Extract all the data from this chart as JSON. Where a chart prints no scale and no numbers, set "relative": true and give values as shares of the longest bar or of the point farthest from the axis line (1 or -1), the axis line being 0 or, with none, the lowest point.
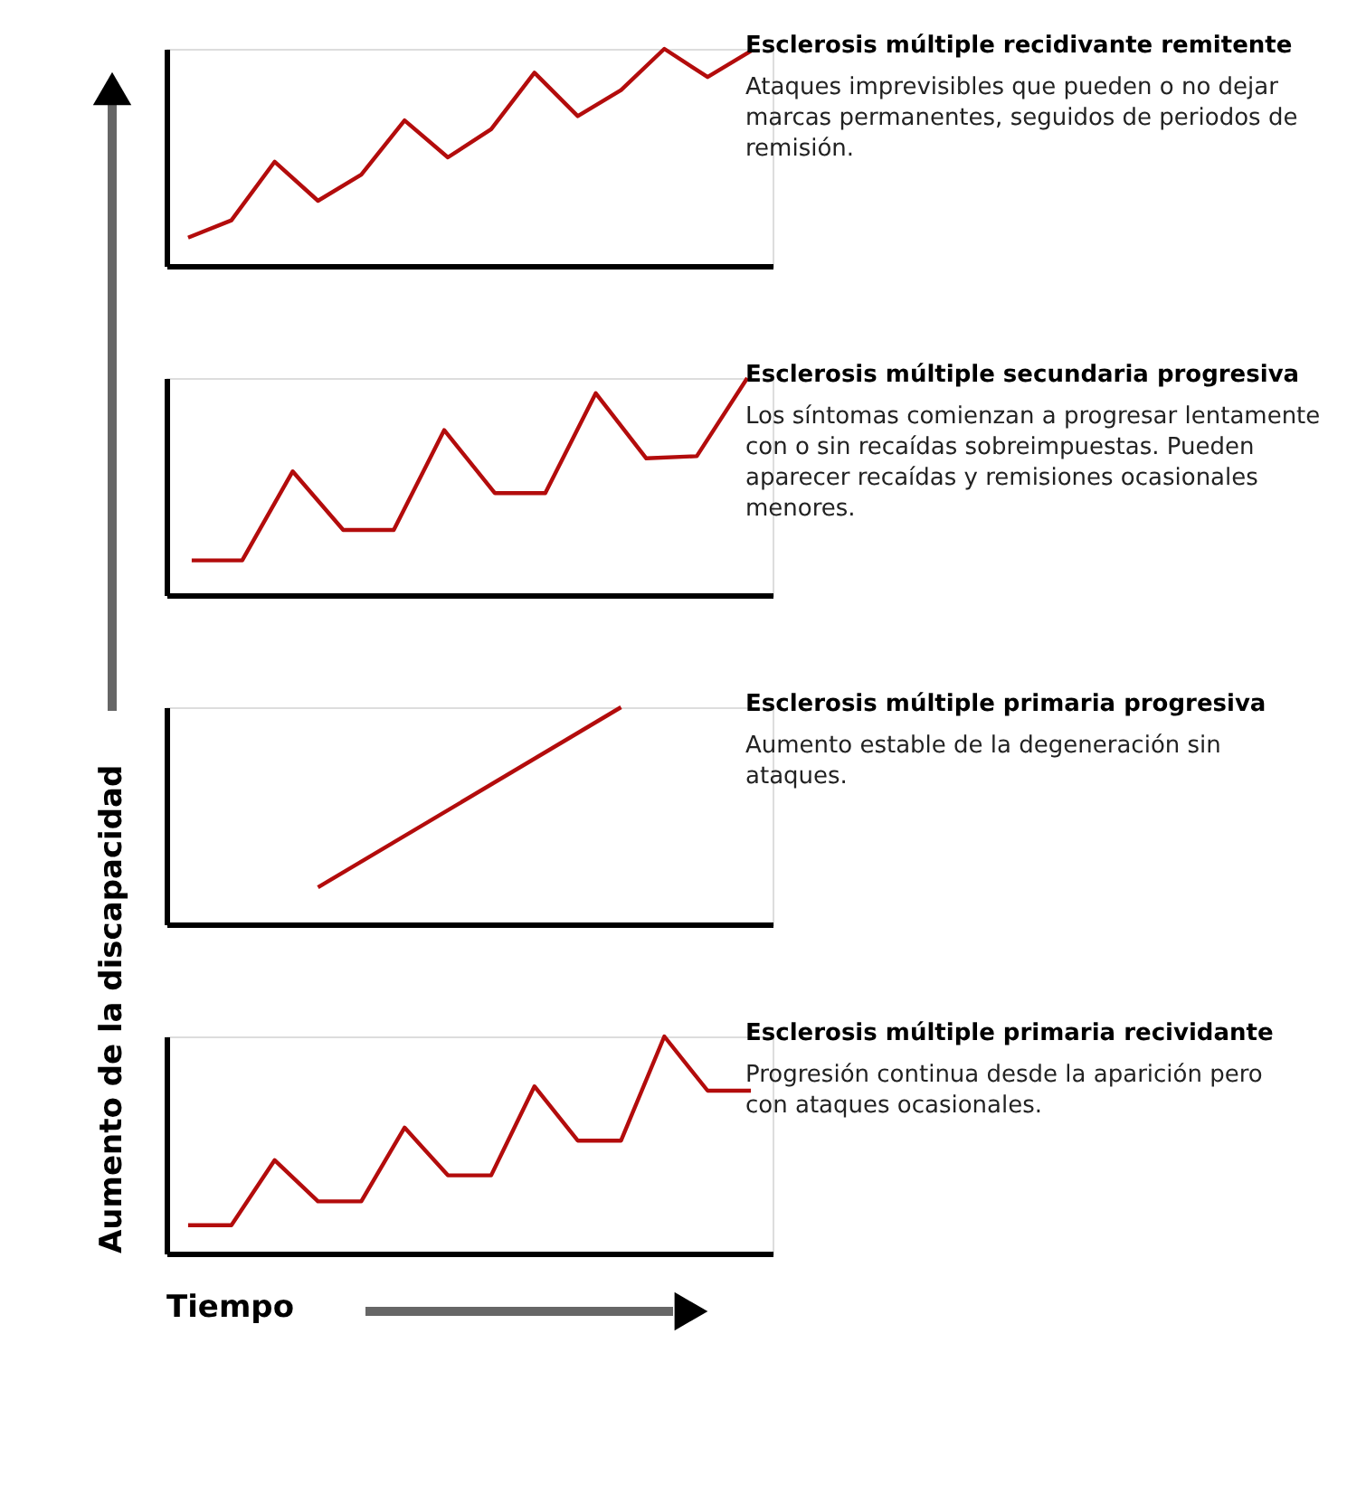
{
  "chart_data": [
    {
      "type": "line",
      "title": "Esclerosis múltiple recidivante remitente",
      "subtitle": "Ataques imprevisibles que pueden o no dejar marcas permanentes, seguidos de periodos de remisión.",
      "relative": true,
      "grid": false,
      "categories": [
        null,
        null,
        null,
        null,
        null,
        null,
        null,
        null,
        null,
        null,
        null,
        null,
        null,
        null
      ],
      "series": [
        {
          "color": "#b30c0c",
          "values": [
            0.13,
            0.21,
            0.48,
            0.3,
            0.42,
            0.67,
            0.5,
            0.63,
            0.89,
            0.69,
            0.81,
            1,
            0.87,
            0.99
          ]
        }
      ]
    },
    {
      "type": "line",
      "title": "Esclerosis múltiple secundaria progresiva",
      "subtitle": "Los síntomas comienzan a progresar lentamente con o sin recaídas sobreimpuestas. Pueden aparecer recaídas y remisiones ocasionales menores.",
      "relative": true,
      "grid": false,
      "categories": [
        null,
        null,
        null,
        null,
        null,
        null,
        null,
        null,
        null,
        null,
        null,
        null
      ],
      "series": [
        {
          "color": "#b30c0c",
          "values": [
            0.16,
            0.16,
            0.57,
            0.3,
            0.3,
            0.76,
            0.47,
            0.47,
            0.93,
            0.63,
            0.64,
            1
          ]
        }
      ]
    },
    {
      "type": "line",
      "title": "Esclerosis múltiple primaria progresiva",
      "subtitle": "Aumento estable de la degeneración sin ataques.",
      "relative": true,
      "grid": false,
      "categories": [
        null,
        null
      ],
      "series": [
        {
          "color": "#b30c0c",
          "values": [
            0.17,
            1
          ]
        }
      ]
    },
    {
      "type": "line",
      "title": "Esclerosis múltiple primaria recividante",
      "subtitle": "Progresión continua desde la aparición pero con ataques ocasionales.",
      "xlabel": "Tiempo",
      "ylabel": "Aumento de la discapacidad",
      "relative": true,
      "grid": false,
      "categories": [
        null,
        null,
        null,
        null,
        null,
        null,
        null,
        null,
        null,
        null,
        null,
        null,
        null,
        null
      ],
      "series": [
        {
          "color": "#b30c0c",
          "values": [
            0.13,
            0.13,
            0.43,
            0.24,
            0.24,
            0.58,
            0.36,
            0.36,
            0.77,
            0.52,
            0.52,
            1,
            0.75,
            0.75
          ]
        }
      ]
    }
  ]
}
